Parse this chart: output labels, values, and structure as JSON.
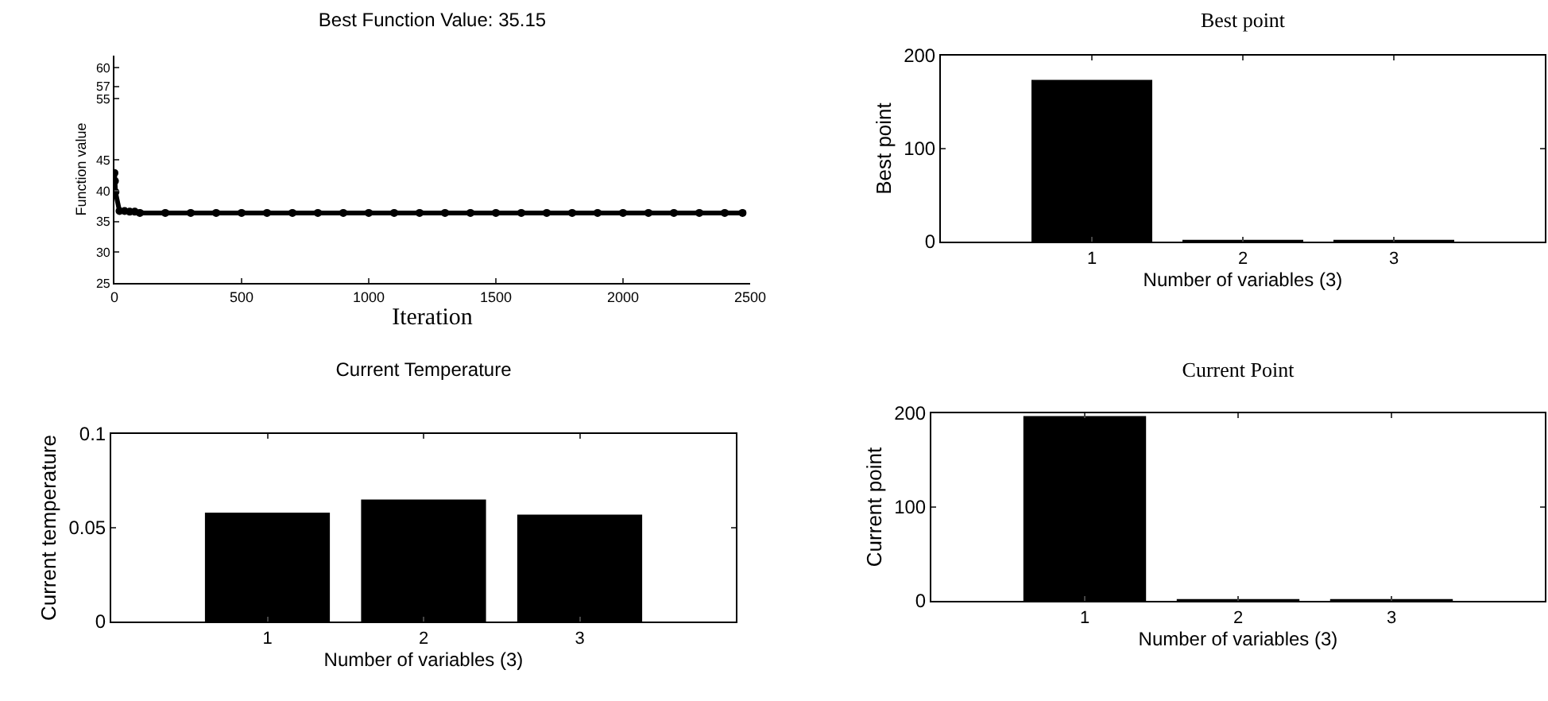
{
  "chart_data": [
    {
      "type": "line",
      "title": "Best Function Value: 35.15",
      "xlabel": "Iteration",
      "ylabel": "Function value",
      "color": "#000000",
      "marker": "circle",
      "x": [
        0,
        2,
        4,
        20,
        40,
        60,
        80,
        100,
        200,
        300,
        400,
        500,
        600,
        700,
        800,
        900,
        1000,
        1100,
        1200,
        1300,
        1400,
        1500,
        1600,
        1700,
        1800,
        1900,
        2000,
        2100,
        2200,
        2300,
        2400,
        2470
      ],
      "values": [
        42.9,
        41.6,
        39.8,
        36.7,
        36.7,
        36.6,
        36.6,
        36.4,
        36.4,
        36.4,
        36.4,
        36.4,
        36.4,
        36.4,
        36.4,
        36.4,
        36.4,
        36.4,
        36.4,
        36.4,
        36.4,
        36.4,
        36.4,
        36.4,
        36.4,
        36.4,
        36.4,
        36.4,
        36.4,
        36.4,
        36.4,
        36.4
      ],
      "xlim": [
        0,
        2500
      ],
      "xticks": [
        0,
        500,
        1000,
        1500,
        2000,
        2500
      ],
      "ylim": [
        25,
        62
      ],
      "yticks": [
        25,
        30,
        35,
        40,
        45,
        55,
        57,
        60
      ]
    },
    {
      "type": "bar",
      "title": "Best point",
      "xlabel": "Number of variables (3)",
      "ylabel": "Best point",
      "color": "#000000",
      "x": [
        1,
        2,
        3
      ],
      "values": [
        174,
        2,
        2
      ],
      "xlim": [
        0,
        4
      ],
      "xticks": [
        1,
        2,
        3
      ],
      "ylim": [
        0,
        200
      ],
      "yticks": [
        0,
        100,
        200
      ]
    },
    {
      "type": "bar",
      "title": "Current Temperature",
      "xlabel": "Number of variables (3)",
      "ylabel": "Current temperature",
      "color": "#000000",
      "x": [
        1,
        2,
        3
      ],
      "values": [
        0.058,
        0.065,
        0.057
      ],
      "xlim": [
        0,
        4
      ],
      "xticks": [
        1,
        2,
        3
      ],
      "ylim": [
        0,
        0.1
      ],
      "yticks": [
        0,
        0.05,
        0.1
      ]
    },
    {
      "type": "bar",
      "title": "Current Point",
      "xlabel": "Number of variables (3)",
      "ylabel": "Current point",
      "color": "#000000",
      "x": [
        1,
        2,
        3
      ],
      "values": [
        197,
        2,
        2
      ],
      "xlim": [
        0,
        4
      ],
      "xticks": [
        1,
        2,
        3
      ],
      "ylim": [
        0,
        200
      ],
      "yticks": [
        0,
        100,
        200
      ]
    }
  ]
}
